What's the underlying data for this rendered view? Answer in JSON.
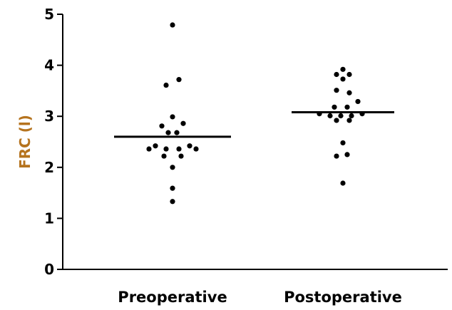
{
  "chart_data": {
    "type": "scatter",
    "title": "",
    "ylabel": "FRC (l)",
    "xlabel": "",
    "ylim": [
      0,
      5
    ],
    "yticks": [
      0,
      1,
      2,
      3,
      4,
      5
    ],
    "categories": [
      "Preoperative",
      "Postoperative"
    ],
    "colors": {
      "ylabel": "#b5731e",
      "points": "#000000",
      "axis": "#000000"
    },
    "groups": [
      {
        "category": "Preoperative",
        "mean": 2.6,
        "points": [
          {
            "offset": 0,
            "y": 4.79
          },
          {
            "offset": -0.06,
            "y": 3.61
          },
          {
            "offset": 0.06,
            "y": 3.72
          },
          {
            "offset": 0,
            "y": 2.99
          },
          {
            "offset": -0.1,
            "y": 2.81
          },
          {
            "offset": 0.1,
            "y": 2.86
          },
          {
            "offset": -0.04,
            "y": 2.68
          },
          {
            "offset": 0.04,
            "y": 2.68
          },
          {
            "offset": -0.16,
            "y": 2.42
          },
          {
            "offset": 0.16,
            "y": 2.42
          },
          {
            "offset": -0.22,
            "y": 2.36
          },
          {
            "offset": -0.06,
            "y": 2.36
          },
          {
            "offset": 0.06,
            "y": 2.36
          },
          {
            "offset": 0.22,
            "y": 2.36
          },
          {
            "offset": -0.08,
            "y": 2.22
          },
          {
            "offset": 0.08,
            "y": 2.22
          },
          {
            "offset": 0,
            "y": 2.0
          },
          {
            "offset": 0,
            "y": 1.59
          },
          {
            "offset": 0,
            "y": 1.33
          }
        ]
      },
      {
        "category": "Postoperative",
        "mean": 3.08,
        "points": [
          {
            "offset": 0,
            "y": 3.92
          },
          {
            "offset": -0.06,
            "y": 3.82
          },
          {
            "offset": 0.06,
            "y": 3.82
          },
          {
            "offset": 0,
            "y": 3.73
          },
          {
            "offset": -0.06,
            "y": 3.51
          },
          {
            "offset": 0.06,
            "y": 3.46
          },
          {
            "offset": 0.14,
            "y": 3.29
          },
          {
            "offset": -0.08,
            "y": 3.18
          },
          {
            "offset": 0.04,
            "y": 3.18
          },
          {
            "offset": -0.22,
            "y": 3.05
          },
          {
            "offset": -0.12,
            "y": 3.01
          },
          {
            "offset": -0.02,
            "y": 3.01
          },
          {
            "offset": 0.08,
            "y": 3.01
          },
          {
            "offset": 0.18,
            "y": 3.05
          },
          {
            "offset": -0.06,
            "y": 2.92
          },
          {
            "offset": 0.06,
            "y": 2.92
          },
          {
            "offset": 0,
            "y": 2.48
          },
          {
            "offset": -0.06,
            "y": 2.22
          },
          {
            "offset": 0.04,
            "y": 2.25
          },
          {
            "offset": 0,
            "y": 1.69
          }
        ]
      }
    ]
  }
}
